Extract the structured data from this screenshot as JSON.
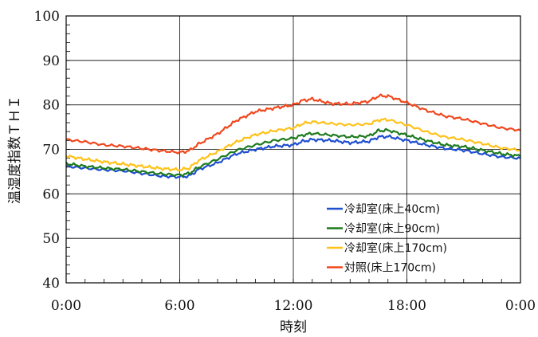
{
  "chart_data": {
    "type": "line",
    "xlabel": "時刻",
    "ylabel": "温湿度指数ＴＨＩ",
    "ylim": [
      40,
      100
    ],
    "yticks": [
      "40",
      "50",
      "60",
      "70",
      "80",
      "90",
      "100"
    ],
    "xlim": [
      0,
      24
    ],
    "xticks": [
      "0:00",
      "6:00",
      "12:00",
      "18:00",
      "0:00"
    ],
    "grid": true,
    "legend_position": "lower-right",
    "series": [
      {
        "name": "冷却室(床上40cm)",
        "color": "#1f4fd0",
        "points": [
          [
            0,
            66.2
          ],
          [
            1,
            65.8
          ],
          [
            2,
            65.4
          ],
          [
            3,
            65.2
          ],
          [
            4,
            64.6
          ],
          [
            5,
            64.0
          ],
          [
            6,
            63.8
          ],
          [
            6.5,
            64.0
          ],
          [
            7,
            65.5
          ],
          [
            8,
            67.0
          ],
          [
            9,
            69.0
          ],
          [
            10,
            70.0
          ],
          [
            11,
            70.7
          ],
          [
            12,
            71.0
          ],
          [
            12.5,
            71.8
          ],
          [
            13,
            72.2
          ],
          [
            14,
            72.0
          ],
          [
            15,
            71.5
          ],
          [
            16,
            71.8
          ],
          [
            16.5,
            72.8
          ],
          [
            17,
            72.9
          ],
          [
            18,
            72.0
          ],
          [
            19,
            71.0
          ],
          [
            20,
            70.2
          ],
          [
            21,
            69.8
          ],
          [
            22,
            69.0
          ],
          [
            23,
            68.3
          ],
          [
            24,
            68.0
          ]
        ]
      },
      {
        "name": "冷却室(床上90cm)",
        "color": "#1e7a1e",
        "points": [
          [
            0,
            66.8
          ],
          [
            1,
            66.2
          ],
          [
            2,
            65.8
          ],
          [
            3,
            65.5
          ],
          [
            4,
            65.0
          ],
          [
            5,
            64.5
          ],
          [
            6,
            64.2
          ],
          [
            6.5,
            64.6
          ],
          [
            7,
            66.0
          ],
          [
            8,
            67.8
          ],
          [
            9,
            69.8
          ],
          [
            10,
            71.0
          ],
          [
            11,
            72.0
          ],
          [
            12,
            72.5
          ],
          [
            12.5,
            73.2
          ],
          [
            13,
            73.6
          ],
          [
            14,
            73.2
          ],
          [
            15,
            72.8
          ],
          [
            16,
            73.0
          ],
          [
            16.5,
            74.2
          ],
          [
            17,
            74.3
          ],
          [
            18,
            73.2
          ],
          [
            19,
            72.0
          ],
          [
            20,
            71.0
          ],
          [
            21,
            70.6
          ],
          [
            22,
            69.8
          ],
          [
            23,
            69.0
          ],
          [
            24,
            68.5
          ]
        ]
      },
      {
        "name": "冷却室(床上170cm)",
        "color": "#ffc21a",
        "points": [
          [
            0,
            68.5
          ],
          [
            1,
            67.8
          ],
          [
            2,
            67.2
          ],
          [
            3,
            66.7
          ],
          [
            4,
            66.2
          ],
          [
            5,
            65.7
          ],
          [
            6,
            65.4
          ],
          [
            6.5,
            65.8
          ],
          [
            7,
            67.5
          ],
          [
            8,
            69.5
          ],
          [
            9,
            71.7
          ],
          [
            10,
            73.3
          ],
          [
            11,
            74.2
          ],
          [
            12,
            74.8
          ],
          [
            12.5,
            75.8
          ],
          [
            13,
            76.2
          ],
          [
            14,
            75.8
          ],
          [
            15,
            75.5
          ],
          [
            16,
            75.7
          ],
          [
            16.5,
            76.6
          ],
          [
            17,
            76.7
          ],
          [
            18,
            75.5
          ],
          [
            19,
            74.0
          ],
          [
            20,
            72.8
          ],
          [
            21,
            72.2
          ],
          [
            22,
            71.3
          ],
          [
            23,
            70.3
          ],
          [
            24,
            69.8
          ]
        ]
      },
      {
        "name": "対照(床上170cm)",
        "color": "#f0481e",
        "points": [
          [
            0,
            72.2
          ],
          [
            1,
            71.7
          ],
          [
            2,
            71.0
          ],
          [
            3,
            70.7
          ],
          [
            4,
            70.2
          ],
          [
            5,
            69.7
          ],
          [
            6,
            69.3
          ],
          [
            6.5,
            69.7
          ],
          [
            7,
            71.2
          ],
          [
            8,
            73.5
          ],
          [
            9,
            76.5
          ],
          [
            10,
            78.5
          ],
          [
            11,
            79.3
          ],
          [
            12,
            80.0
          ],
          [
            12.5,
            81.0
          ],
          [
            13,
            81.3
          ],
          [
            14,
            80.3
          ],
          [
            15,
            80.2
          ],
          [
            16,
            80.8
          ],
          [
            16.5,
            82.0
          ],
          [
            17,
            82.0
          ],
          [
            18,
            80.5
          ],
          [
            19,
            78.8
          ],
          [
            20,
            77.5
          ],
          [
            21,
            76.8
          ],
          [
            22,
            75.8
          ],
          [
            23,
            74.8
          ],
          [
            24,
            74.3
          ]
        ]
      }
    ]
  }
}
